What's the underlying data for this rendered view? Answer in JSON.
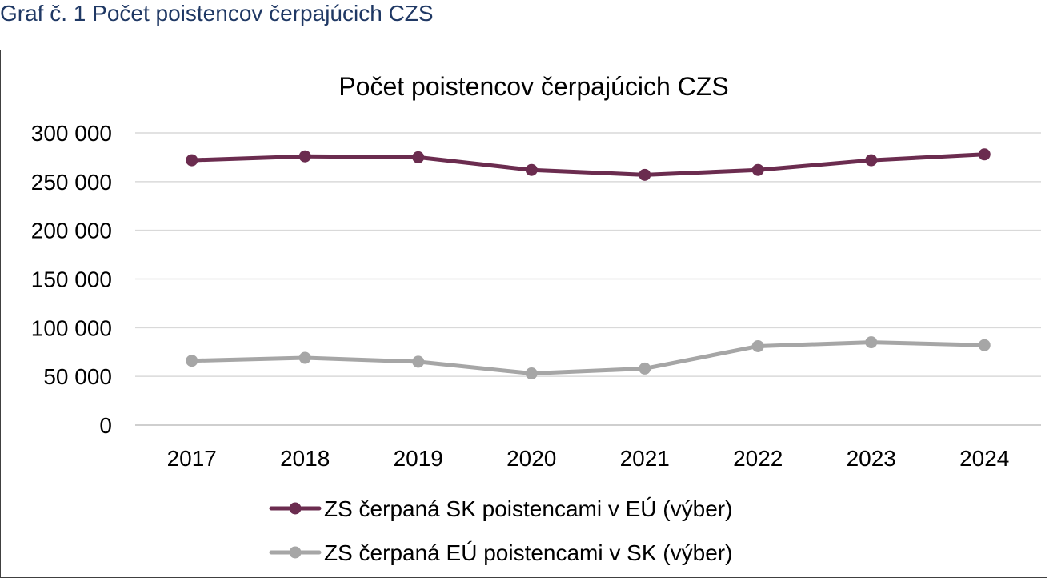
{
  "caption": "Graf č. 1 Počet poistencov čerpajúcich CZS",
  "chart_data": {
    "type": "line",
    "title": "Počet poistencov čerpajúcich CZS",
    "xlabel": "",
    "ylabel": "",
    "categories": [
      "2017",
      "2018",
      "2019",
      "2020",
      "2021",
      "2022",
      "2023",
      "2024"
    ],
    "ylim": [
      0,
      300000
    ],
    "yticks": [
      0,
      50000,
      100000,
      150000,
      200000,
      250000,
      300000
    ],
    "ytick_labels": [
      "0",
      "50 000",
      "100 000",
      "150 000",
      "200 000",
      "250 000",
      "300 000"
    ],
    "grid": true,
    "legend_position": "bottom",
    "series": [
      {
        "name": "ZS čerpaná SK poistencami v EÚ (výber)",
        "color": "#6b2c4f",
        "values": [
          272000,
          276000,
          275000,
          262000,
          257000,
          262000,
          272000,
          278000
        ]
      },
      {
        "name": "ZS čerpaná EÚ poistencami v SK (výber)",
        "color": "#a6a6a6",
        "values": [
          66000,
          69000,
          65000,
          53000,
          58000,
          81000,
          85000,
          82000
        ]
      }
    ]
  }
}
